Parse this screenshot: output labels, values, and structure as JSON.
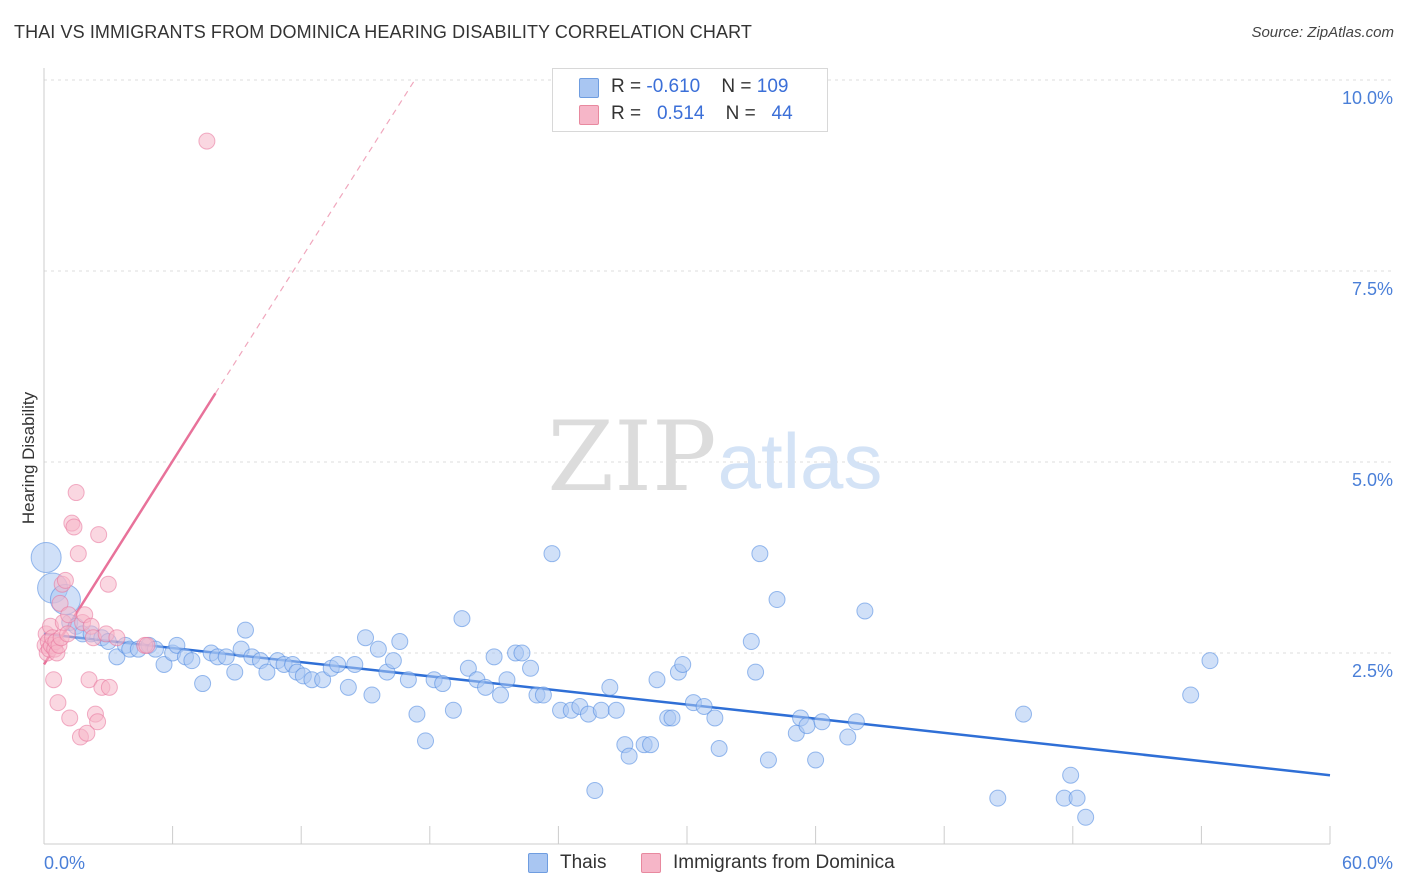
{
  "title": "THAI VS IMMIGRANTS FROM DOMINICA HEARING DISABILITY CORRELATION CHART",
  "source": "Source: ZipAtlas.com",
  "watermark": {
    "zip": "ZIP",
    "atlas": "atlas"
  },
  "legend_top": [
    {
      "r_label": "R = ",
      "r_value": "-0.610",
      "n_label": "N = ",
      "n_value": "109",
      "color": "#a9c6f2"
    },
    {
      "r_label": "R = ",
      "r_value": "0.514",
      "n_label": "N = ",
      "n_value": "44",
      "color": "#f6b6c8"
    }
  ],
  "legend_bottom": [
    {
      "label": "Thais",
      "color": "#a9c6f2"
    },
    {
      "label": "Immigrants from Dominica",
      "color": "#f6b6c8"
    }
  ],
  "chart_data": {
    "type": "scatter",
    "xlabel": "",
    "ylabel": "Hearing Disability",
    "xlim": [
      0,
      60
    ],
    "ylim": [
      0,
      10
    ],
    "x_tick_labels": [
      "0.0%",
      "60.0%"
    ],
    "y_ticks": [
      2.5,
      5.0,
      7.5,
      10.0
    ],
    "y_tick_labels": [
      "2.5%",
      "5.0%",
      "7.5%",
      "10.0%"
    ],
    "grid": "horizontal dashed",
    "legend": "bottom-center",
    "series": [
      {
        "name": "Thais",
        "color": "#4a86e0",
        "fill": "#a9c6f2",
        "trend": {
          "x": [
            0,
            60
          ],
          "y": [
            2.75,
            0.9
          ]
        },
        "points": [
          [
            0.1,
            3.75
          ],
          [
            0.4,
            3.35
          ],
          [
            1.0,
            3.2
          ],
          [
            1.2,
            2.9
          ],
          [
            1.5,
            2.85
          ],
          [
            1.8,
            2.75
          ],
          [
            2.2,
            2.75
          ],
          [
            2.7,
            2.7
          ],
          [
            3.0,
            2.65
          ],
          [
            3.4,
            2.45
          ],
          [
            3.8,
            2.6
          ],
          [
            4.0,
            2.55
          ],
          [
            4.4,
            2.55
          ],
          [
            4.9,
            2.6
          ],
          [
            5.2,
            2.55
          ],
          [
            5.6,
            2.35
          ],
          [
            6.0,
            2.5
          ],
          [
            6.2,
            2.6
          ],
          [
            6.6,
            2.45
          ],
          [
            6.9,
            2.4
          ],
          [
            7.4,
            2.1
          ],
          [
            7.8,
            2.5
          ],
          [
            8.1,
            2.45
          ],
          [
            8.5,
            2.45
          ],
          [
            8.9,
            2.25
          ],
          [
            9.2,
            2.55
          ],
          [
            9.4,
            2.8
          ],
          [
            9.7,
            2.45
          ],
          [
            10.1,
            2.4
          ],
          [
            10.4,
            2.25
          ],
          [
            10.9,
            2.4
          ],
          [
            11.2,
            2.35
          ],
          [
            11.6,
            2.35
          ],
          [
            11.8,
            2.25
          ],
          [
            12.1,
            2.2
          ],
          [
            12.5,
            2.15
          ],
          [
            13.0,
            2.15
          ],
          [
            13.4,
            2.3
          ],
          [
            13.7,
            2.35
          ],
          [
            14.2,
            2.05
          ],
          [
            14.5,
            2.35
          ],
          [
            15.0,
            2.7
          ],
          [
            15.3,
            1.95
          ],
          [
            15.6,
            2.55
          ],
          [
            16.0,
            2.25
          ],
          [
            16.3,
            2.4
          ],
          [
            16.6,
            2.65
          ],
          [
            17.0,
            2.15
          ],
          [
            17.4,
            1.7
          ],
          [
            17.8,
            1.35
          ],
          [
            18.2,
            2.15
          ],
          [
            18.6,
            2.1
          ],
          [
            19.1,
            1.75
          ],
          [
            19.5,
            2.95
          ],
          [
            19.8,
            2.3
          ],
          [
            20.2,
            2.15
          ],
          [
            20.6,
            2.05
          ],
          [
            21.0,
            2.45
          ],
          [
            21.3,
            1.95
          ],
          [
            21.6,
            2.15
          ],
          [
            22.0,
            2.5
          ],
          [
            22.3,
            2.5
          ],
          [
            22.7,
            2.3
          ],
          [
            23.0,
            1.95
          ],
          [
            23.3,
            1.95
          ],
          [
            23.7,
            3.8
          ],
          [
            24.1,
            1.75
          ],
          [
            24.6,
            1.75
          ],
          [
            25.0,
            1.8
          ],
          [
            25.4,
            1.7
          ],
          [
            25.7,
            0.7
          ],
          [
            26.0,
            1.75
          ],
          [
            26.4,
            2.05
          ],
          [
            26.7,
            1.75
          ],
          [
            27.1,
            1.3
          ],
          [
            27.3,
            1.15
          ],
          [
            28.0,
            1.3
          ],
          [
            28.3,
            1.3
          ],
          [
            28.6,
            2.15
          ],
          [
            29.1,
            1.65
          ],
          [
            29.3,
            1.65
          ],
          [
            29.6,
            2.25
          ],
          [
            29.8,
            2.35
          ],
          [
            30.3,
            1.85
          ],
          [
            30.8,
            1.8
          ],
          [
            31.3,
            1.65
          ],
          [
            31.5,
            1.25
          ],
          [
            33.0,
            2.65
          ],
          [
            33.2,
            2.25
          ],
          [
            33.4,
            3.8
          ],
          [
            33.8,
            1.1
          ],
          [
            34.2,
            3.2
          ],
          [
            35.1,
            1.45
          ],
          [
            35.3,
            1.65
          ],
          [
            35.6,
            1.55
          ],
          [
            36.0,
            1.1
          ],
          [
            36.3,
            1.6
          ],
          [
            37.5,
            1.4
          ],
          [
            37.9,
            1.6
          ],
          [
            38.3,
            3.05
          ],
          [
            44.5,
            0.6
          ],
          [
            45.7,
            1.7
          ],
          [
            47.6,
            0.6
          ],
          [
            47.9,
            0.9
          ],
          [
            48.2,
            0.6
          ],
          [
            48.6,
            0.35
          ],
          [
            53.5,
            1.95
          ],
          [
            54.4,
            2.4
          ]
        ]
      },
      {
        "name": "Immigrants from Dominica",
        "color": "#e8729a",
        "fill": "#f6b6c8",
        "trend": {
          "x": [
            0,
            8
          ],
          "y": [
            2.35,
            5.9
          ],
          "dashed_to": {
            "x": 17.3,
            "y": 10.0
          }
        },
        "points": [
          [
            0.05,
            2.6
          ],
          [
            0.1,
            2.75
          ],
          [
            0.15,
            2.5
          ],
          [
            0.2,
            2.65
          ],
          [
            0.25,
            2.55
          ],
          [
            0.3,
            2.85
          ],
          [
            0.35,
            2.6
          ],
          [
            0.4,
            2.7
          ],
          [
            0.45,
            2.15
          ],
          [
            0.5,
            2.55
          ],
          [
            0.55,
            2.65
          ],
          [
            0.6,
            2.5
          ],
          [
            0.65,
            1.85
          ],
          [
            0.7,
            2.6
          ],
          [
            0.75,
            3.15
          ],
          [
            0.8,
            2.7
          ],
          [
            0.85,
            3.4
          ],
          [
            0.9,
            2.9
          ],
          [
            1.0,
            3.45
          ],
          [
            1.1,
            2.75
          ],
          [
            1.15,
            3.0
          ],
          [
            1.2,
            1.65
          ],
          [
            1.3,
            4.2
          ],
          [
            1.4,
            4.15
          ],
          [
            1.5,
            4.6
          ],
          [
            1.6,
            3.8
          ],
          [
            1.7,
            1.4
          ],
          [
            1.8,
            2.9
          ],
          [
            1.9,
            3.0
          ],
          [
            2.0,
            1.45
          ],
          [
            2.1,
            2.15
          ],
          [
            2.2,
            2.85
          ],
          [
            2.3,
            2.7
          ],
          [
            2.4,
            1.7
          ],
          [
            2.5,
            1.6
          ],
          [
            2.55,
            4.05
          ],
          [
            2.7,
            2.05
          ],
          [
            2.9,
            2.75
          ],
          [
            3.0,
            3.4
          ],
          [
            3.05,
            2.05
          ],
          [
            3.4,
            2.7
          ],
          [
            4.7,
            2.6
          ],
          [
            4.8,
            2.6
          ],
          [
            7.6,
            9.2
          ]
        ]
      }
    ]
  }
}
